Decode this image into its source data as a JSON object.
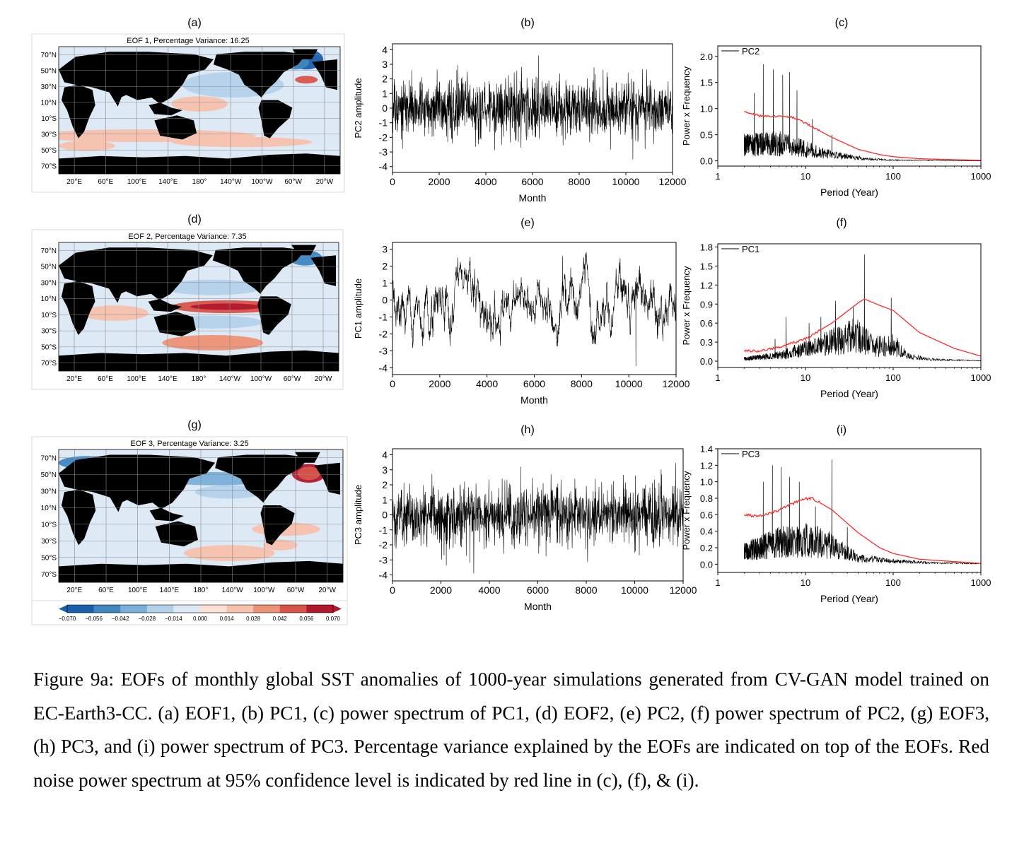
{
  "caption": "Figure  9a: EOFs of monthly global SST anomalies of 1000-year simulations generated from CV-GAN model trained on EC-Earth3-CC. (a) EOF1, (b) PC1, (c) power spectrum of PC1, (d) EOF2, (e) PC2, (f) power spectrum of PC2, (g) EOF3, (h) PC3, and (i) power spectrum of PC3. Percentage variance explained by the EOFs are indicated on top of the EOFs. Red noise power spectrum at 95% confidence level is indicated by red line in (c), (f), & (i).",
  "panel_labels": [
    "(a)",
    "(b)",
    "(c)",
    "(d)",
    "(e)",
    "(f)",
    "(g)",
    "(h)",
    "(i)"
  ],
  "colors": {
    "red_noise": "#ff2b2b",
    "series": "#000000",
    "ocean_base": "#f1f4fb",
    "land": "#000000"
  },
  "maps": [
    {
      "title": "EOF 1, Percentage Variance: 16.25",
      "lat_labels": [
        "70°N",
        "50°N",
        "30°N",
        "10°N",
        "10°S",
        "30°S",
        "50°S",
        "70°S"
      ],
      "lon_labels": [
        "20°E",
        "60°E",
        "100°E",
        "140°E",
        "180°",
        "140°W",
        "100°W",
        "60°W",
        "20°W"
      ]
    },
    {
      "title": "EOF 2, Percentage Variance: 7.35",
      "lat_labels": [
        "70°N",
        "50°N",
        "30°N",
        "10°N",
        "10°S",
        "30°S",
        "50°S",
        "70°S"
      ],
      "lon_labels": [
        "20°E",
        "60°E",
        "100°E",
        "140°E",
        "180°",
        "140°W",
        "100°W",
        "60°W",
        "20°W"
      ]
    },
    {
      "title": "EOF 3, Percentage Variance: 3.25",
      "lat_labels": [
        "70°N",
        "50°N",
        "30°N",
        "10°N",
        "10°S",
        "30°S",
        "50°S",
        "70°S"
      ],
      "lon_labels": [
        "20°E",
        "60°E",
        "100°E",
        "140°E",
        "180°",
        "140°W",
        "100°W",
        "60°W",
        "20°W"
      ]
    }
  ],
  "colorbar": {
    "ticks": [
      "−0.070",
      "−0.056",
      "−0.042",
      "−0.028",
      "−0.014",
      "0.000",
      "0.014",
      "0.028",
      "0.042",
      "0.056",
      "0.070"
    ],
    "colors": [
      "#1b5eab",
      "#3f87c1",
      "#79b0d9",
      "#b3d2ea",
      "#dde9f5",
      "#fbe0d4",
      "#f7c1ad",
      "#ee9275",
      "#d8544a",
      "#b1182c"
    ]
  },
  "chart_data": [
    {
      "panel": "(b)",
      "type": "line",
      "ylabel": "PC2 amplitude",
      "xlabel": "Month",
      "xlim": [
        0,
        12000
      ],
      "ylim": [
        -4.4,
        4.4
      ],
      "xticks": [
        "0",
        "2000",
        "4000",
        "6000",
        "8000",
        "10000",
        "12000"
      ],
      "yticks": [
        "4",
        "3",
        "2",
        "1",
        "0",
        "-1",
        "-2",
        "-3",
        "-4"
      ],
      "shape": "noise",
      "amplitude": 1.0,
      "extreme_peak": [
        6250,
        3.6
      ],
      "extreme_trough": [
        10300,
        -3.5
      ]
    },
    {
      "panel": "(e)",
      "type": "line",
      "ylabel": "PC1 amplitude",
      "xlabel": "Month",
      "xlim": [
        0,
        12000
      ],
      "ylim": [
        -4.4,
        3.4
      ],
      "xticks": [
        "0",
        "2000",
        "4000",
        "6000",
        "8000",
        "10000",
        "12000"
      ],
      "yticks": [
        "3",
        "2",
        "1",
        "0",
        "-1",
        "-2",
        "-3",
        "-4"
      ],
      "shape": "enso",
      "amplitude": 1.0,
      "extreme_peak": [
        7200,
        2.6
      ],
      "extreme_trough": [
        10300,
        -3.9
      ]
    },
    {
      "panel": "(h)",
      "type": "line",
      "ylabel": "PC3 amplitude",
      "xlabel": "Month",
      "xlim": [
        0,
        12000
      ],
      "ylim": [
        -4.4,
        4.4
      ],
      "xticks": [
        "0",
        "2000",
        "4000",
        "6000",
        "8000",
        "10000",
        "12000"
      ],
      "yticks": [
        "4",
        "3",
        "2",
        "1",
        "0",
        "-1",
        "-2",
        "-3",
        "-4"
      ],
      "shape": "noise",
      "amplitude": 1.0,
      "extreme_peak": [
        5300,
        3.2
      ],
      "extreme_trough": [
        3200,
        -3.2
      ]
    },
    {
      "panel": "(c)",
      "type": "line",
      "xscale": "log",
      "xlabel": "Period (Year)",
      "ylabel": "Power x Frequency",
      "xlim": [
        1,
        1000
      ],
      "ylim": [
        -0.1,
        2.2
      ],
      "xticks": [
        "1",
        "10",
        "100",
        "1000"
      ],
      "yticks": [
        "2.0",
        "1.5",
        "1.0",
        "0.5",
        "0.0"
      ],
      "legend": "PC2",
      "legend_position": "top-left",
      "red_noise": [
        [
          2,
          0.95
        ],
        [
          3,
          0.86
        ],
        [
          5,
          0.85
        ],
        [
          7,
          0.84
        ],
        [
          10,
          0.72
        ],
        [
          20,
          0.45
        ],
        [
          40,
          0.22
        ],
        [
          70,
          0.12
        ],
        [
          100,
          0.08
        ],
        [
          200,
          0.04
        ],
        [
          1000,
          0.01
        ]
      ],
      "peaks": [
        [
          3.3,
          1.85
        ],
        [
          4.3,
          1.75
        ],
        [
          5.5,
          1.65
        ],
        [
          6.6,
          1.7
        ],
        [
          2.6,
          1.3
        ],
        [
          8,
          1.35
        ],
        [
          12,
          0.8
        ],
        [
          20,
          0.5
        ]
      ],
      "envelope": [
        [
          2,
          0.4
        ],
        [
          5,
          0.45
        ],
        [
          10,
          0.3
        ],
        [
          20,
          0.15
        ],
        [
          50,
          0.05
        ],
        [
          100,
          0.02
        ],
        [
          1000,
          0.0
        ]
      ]
    },
    {
      "panel": "(f)",
      "type": "line",
      "xscale": "log",
      "xlabel": "Period (Year)",
      "ylabel": "Power x Frequency",
      "xlim": [
        1,
        1000
      ],
      "ylim": [
        -0.1,
        1.85
      ],
      "xticks": [
        "1",
        "10",
        "100",
        "1000"
      ],
      "yticks": [
        "1.8",
        "1.5",
        "1.2",
        "0.9",
        "0.6",
        "0.3",
        "0.0"
      ],
      "legend": "PC1",
      "legend_position": "top-left",
      "red_noise": [
        [
          2,
          0.16
        ],
        [
          3,
          0.16
        ],
        [
          5,
          0.22
        ],
        [
          10,
          0.35
        ],
        [
          20,
          0.6
        ],
        [
          40,
          0.92
        ],
        [
          47,
          0.98
        ],
        [
          70,
          0.88
        ],
        [
          100,
          0.8
        ],
        [
          200,
          0.45
        ],
        [
          500,
          0.2
        ],
        [
          1000,
          0.08
        ]
      ],
      "peaks": [
        [
          47,
          1.68
        ],
        [
          95,
          1.0
        ],
        [
          22,
          0.95
        ],
        [
          35,
          0.85
        ],
        [
          15,
          0.7
        ],
        [
          6,
          0.7
        ],
        [
          11,
          0.6
        ],
        [
          4.5,
          0.35
        ]
      ],
      "envelope": [
        [
          2,
          0.05
        ],
        [
          5,
          0.12
        ],
        [
          10,
          0.25
        ],
        [
          20,
          0.4
        ],
        [
          40,
          0.55
        ],
        [
          60,
          0.3
        ],
        [
          100,
          0.35
        ],
        [
          150,
          0.1
        ],
        [
          300,
          0.03
        ],
        [
          1000,
          0.01
        ]
      ]
    },
    {
      "panel": "(i)",
      "type": "line",
      "xscale": "log",
      "xlabel": "Period (Year)",
      "ylabel": "Power x Frequency",
      "xlim": [
        1,
        1000
      ],
      "ylim": [
        -0.1,
        1.4
      ],
      "xticks": [
        "1",
        "10",
        "100",
        "1000"
      ],
      "yticks": [
        "1.4",
        "1.2",
        "1.0",
        "0.8",
        "0.6",
        "0.4",
        "0.2",
        "0.0"
      ],
      "legend": "PC3",
      "legend_position": "top-left",
      "red_noise": [
        [
          2,
          0.6
        ],
        [
          3,
          0.58
        ],
        [
          5,
          0.66
        ],
        [
          8,
          0.76
        ],
        [
          10,
          0.79
        ],
        [
          12,
          0.8
        ],
        [
          20,
          0.66
        ],
        [
          40,
          0.38
        ],
        [
          70,
          0.2
        ],
        [
          100,
          0.13
        ],
        [
          200,
          0.06
        ],
        [
          1000,
          0.01
        ]
      ],
      "peaks": [
        [
          20,
          1.27
        ],
        [
          4.2,
          1.2
        ],
        [
          5.3,
          1.18
        ],
        [
          6.6,
          1.06
        ],
        [
          3.3,
          1.0
        ],
        [
          8.5,
          1.0
        ],
        [
          13,
          0.7
        ],
        [
          30,
          0.45
        ]
      ],
      "envelope": [
        [
          2,
          0.2
        ],
        [
          5,
          0.35
        ],
        [
          10,
          0.4
        ],
        [
          20,
          0.3
        ],
        [
          40,
          0.1
        ],
        [
          100,
          0.05
        ],
        [
          300,
          0.02
        ],
        [
          1000,
          0.01
        ]
      ]
    }
  ]
}
